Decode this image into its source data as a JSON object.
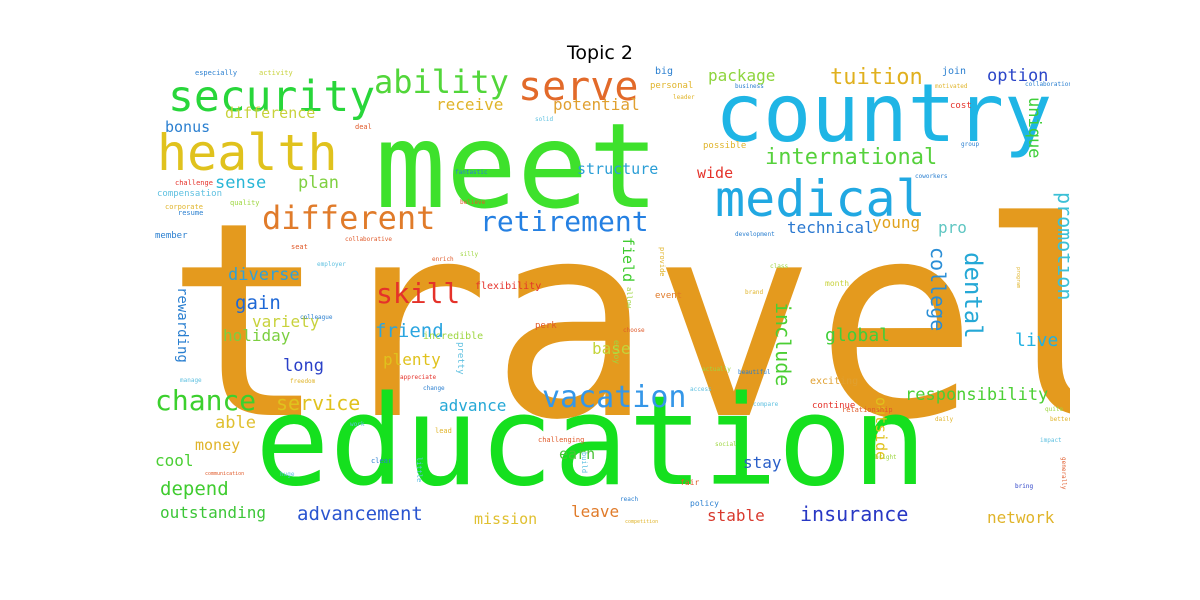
{
  "title": "Topic 2",
  "words": [
    {
      "text": "travel",
      "color": "#e49a1e"
    },
    {
      "text": "meet",
      "color": "#3ee12c"
    },
    {
      "text": "education",
      "color": "#15e01e"
    },
    {
      "text": "country",
      "color": "#1fb5e5"
    },
    {
      "text": "medical",
      "color": "#21a8e2"
    },
    {
      "text": "health",
      "color": "#e0c21d"
    },
    {
      "text": "security",
      "color": "#28d63a"
    },
    {
      "text": "serve",
      "color": "#e26a2a"
    },
    {
      "text": "ability",
      "color": "#52d63a"
    },
    {
      "text": "different",
      "color": "#e07b2a"
    },
    {
      "text": "retirement",
      "color": "#2580e2"
    },
    {
      "text": "international",
      "color": "#56d13c"
    },
    {
      "text": "vacation",
      "color": "#3597e8"
    },
    {
      "text": "skill",
      "color": "#e5322a"
    },
    {
      "text": "chance",
      "color": "#3cd02e"
    },
    {
      "text": "tuition",
      "color": "#e0b01e"
    },
    {
      "text": "package",
      "color": "#8dd43c"
    },
    {
      "text": "option",
      "color": "#2a45c8"
    },
    {
      "text": "advancement",
      "color": "#2a55d0"
    },
    {
      "text": "insurance",
      "color": "#2838c4"
    },
    {
      "text": "responsibility",
      "color": "#4bcf34"
    },
    {
      "text": "service",
      "color": "#e0c21d"
    },
    {
      "text": "gain",
      "color": "#1e68d6"
    },
    {
      "text": "friend",
      "color": "#2aa5e0"
    },
    {
      "text": "depend",
      "color": "#40cc30"
    },
    {
      "text": "outstanding",
      "color": "#3cc638"
    },
    {
      "text": "sense",
      "color": "#28b6d6"
    },
    {
      "text": "plan",
      "color": "#7fd040"
    },
    {
      "text": "diverse",
      "color": "#31a0d6"
    },
    {
      "text": "global",
      "color": "#3fcf3a"
    },
    {
      "text": "live",
      "color": "#20b1e2"
    },
    {
      "text": "technical",
      "color": "#2a78d0"
    },
    {
      "text": "young",
      "color": "#e0a21c"
    },
    {
      "text": "pro",
      "color": "#5fc6c2"
    },
    {
      "text": "stay",
      "color": "#2a5fc8"
    },
    {
      "text": "stable",
      "color": "#d8392d"
    },
    {
      "text": "network",
      "color": "#e0b42a"
    },
    {
      "text": "earn",
      "color": "#4bc238"
    },
    {
      "text": "advance",
      "color": "#25a8d6"
    },
    {
      "text": "holiday",
      "color": "#7bcf40"
    },
    {
      "text": "variety",
      "color": "#c8d23c"
    },
    {
      "text": "long",
      "color": "#2a40c8"
    },
    {
      "text": "plenty",
      "color": "#e0c21d"
    },
    {
      "text": "base",
      "color": "#c4d43a"
    },
    {
      "text": "able",
      "color": "#e0c030"
    },
    {
      "text": "money",
      "color": "#e0b42a"
    },
    {
      "text": "cool",
      "color": "#4bcf34"
    },
    {
      "text": "receive",
      "color": "#e0b42a"
    },
    {
      "text": "potential",
      "color": "#e0a030"
    },
    {
      "text": "bonus",
      "color": "#2a7fd0"
    },
    {
      "text": "difference",
      "color": "#c8d23c"
    },
    {
      "text": "structure",
      "color": "#2a9ed6"
    },
    {
      "text": "wide",
      "color": "#e5322a"
    },
    {
      "text": "leave",
      "color": "#e07b2a"
    },
    {
      "text": "mission",
      "color": "#e0c030"
    },
    {
      "text": "unique",
      "color": "#3fcf3a"
    },
    {
      "text": "promotion",
      "color": "#3cc0d6"
    },
    {
      "text": "dental",
      "color": "#25a8d6"
    },
    {
      "text": "college",
      "color": "#2a8ed6"
    },
    {
      "text": "available",
      "color": "#c8d23c"
    },
    {
      "text": "include",
      "color": "#4bcf34"
    },
    {
      "text": "outside",
      "color": "#e0c21d"
    },
    {
      "text": "rewarding",
      "color": "#2a7fd0"
    },
    {
      "text": "field",
      "color": "#40cc30"
    },
    {
      "text": "flexibility",
      "color": "#e5322a"
    },
    {
      "text": "incredible",
      "color": "#9ed640"
    },
    {
      "text": "compensation",
      "color": "#5ec0e0"
    },
    {
      "text": "continue",
      "color": "#e5322a"
    },
    {
      "text": "event",
      "color": "#e07b2a"
    },
    {
      "text": "exciting",
      "color": "#e0a030"
    },
    {
      "text": "perk",
      "color": "#e05a2a"
    },
    {
      "text": "possible",
      "color": "#e0b42a"
    },
    {
      "text": "join",
      "color": "#2a7fd0"
    },
    {
      "text": "cost",
      "color": "#e5322a"
    },
    {
      "text": "member",
      "color": "#2a7fd0"
    },
    {
      "text": "month",
      "color": "#c8d23c"
    },
    {
      "text": "relationship",
      "color": "#e05a2a"
    },
    {
      "text": "personal",
      "color": "#e0b42a"
    },
    {
      "text": "big",
      "color": "#2a7fd0"
    },
    {
      "text": "especially",
      "color": "#2a7fd0"
    },
    {
      "text": "activity",
      "color": "#c8d23c"
    },
    {
      "text": "collaboration",
      "color": "#2a7fd0"
    },
    {
      "text": "deal",
      "color": "#e05a2a"
    },
    {
      "text": "challenge",
      "color": "#e5322a"
    },
    {
      "text": "corporate",
      "color": "#e0b42a"
    },
    {
      "text": "quality",
      "color": "#9ed640"
    },
    {
      "text": "resume",
      "color": "#2a7fd0"
    },
    {
      "text": "believe",
      "color": "#e05a2a"
    },
    {
      "text": "fantastic",
      "color": "#2a7fd0"
    },
    {
      "text": "clear",
      "color": "#2a7fd0"
    },
    {
      "text": "little",
      "color": "#5ec0e0"
    },
    {
      "text": "build",
      "color": "#5ec0e0"
    },
    {
      "text": "fair",
      "color": "#e05a2a"
    },
    {
      "text": "policy",
      "color": "#2a7fd0"
    },
    {
      "text": "enjoy",
      "color": "#9ed640"
    },
    {
      "text": "pretty",
      "color": "#5ec0e0"
    },
    {
      "text": "allow",
      "color": "#9ed640"
    },
    {
      "text": "provide",
      "color": "#e0b42a"
    },
    {
      "text": "challenging",
      "color": "#e05a2a"
    },
    {
      "text": "social",
      "color": "#9ed640"
    },
    {
      "text": "daily",
      "color": "#e0b42a"
    },
    {
      "text": "quite",
      "color": "#9ed640"
    },
    {
      "text": "better",
      "color": "#e0b42a"
    },
    {
      "text": "impact",
      "color": "#5ec0e0"
    },
    {
      "text": "bring",
      "color": "#2a40c8"
    },
    {
      "text": "generally",
      "color": "#e05a2a"
    },
    {
      "text": "beautiful",
      "color": "#2a7fd0"
    },
    {
      "text": "choose",
      "color": "#e05a2a"
    },
    {
      "text": "appreciate",
      "color": "#e5322a"
    },
    {
      "text": "freedom",
      "color": "#e0b42a"
    },
    {
      "text": "manage",
      "color": "#5ec0e0"
    },
    {
      "text": "colleague",
      "color": "#2a7fd0"
    },
    {
      "text": "employer",
      "color": "#5ec0e0"
    },
    {
      "text": "collaborative",
      "color": "#e05a2a"
    },
    {
      "text": "development",
      "color": "#2a7fd0"
    },
    {
      "text": "leader",
      "color": "#e0b42a"
    },
    {
      "text": "business",
      "color": "#2a7fd0"
    },
    {
      "text": "motivated",
      "color": "#e0b42a"
    },
    {
      "text": "coworkers",
      "color": "#2a7fd0"
    },
    {
      "text": "class",
      "color": "#9ed640"
    },
    {
      "text": "brand",
      "color": "#e0b42a"
    },
    {
      "text": "program",
      "color": "#e0b42a"
    },
    {
      "text": "access",
      "color": "#5ec0e0"
    },
    {
      "text": "actually",
      "color": "#9ed640"
    },
    {
      "text": "compare",
      "color": "#5ec0e0"
    },
    {
      "text": "competition",
      "color": "#e0b42a"
    },
    {
      "text": "group",
      "color": "#2a7fd0"
    },
    {
      "text": "bright",
      "color": "#9ed640"
    },
    {
      "text": "lead",
      "color": "#e0b42a"
    },
    {
      "text": "huge",
      "color": "#5ec0e0"
    },
    {
      "text": "communication",
      "color": "#e05a2a"
    },
    {
      "text": "change",
      "color": "#2a7fd0"
    },
    {
      "text": "work",
      "color": "#5ec0e0"
    },
    {
      "text": "solid",
      "color": "#5ec0e0"
    },
    {
      "text": "enrich",
      "color": "#e05a2a"
    },
    {
      "text": "reach",
      "color": "#2a7fd0"
    },
    {
      "text": "silly",
      "color": "#9ed640"
    },
    {
      "text": "seat",
      "color": "#e05a2a"
    }
  ]
}
